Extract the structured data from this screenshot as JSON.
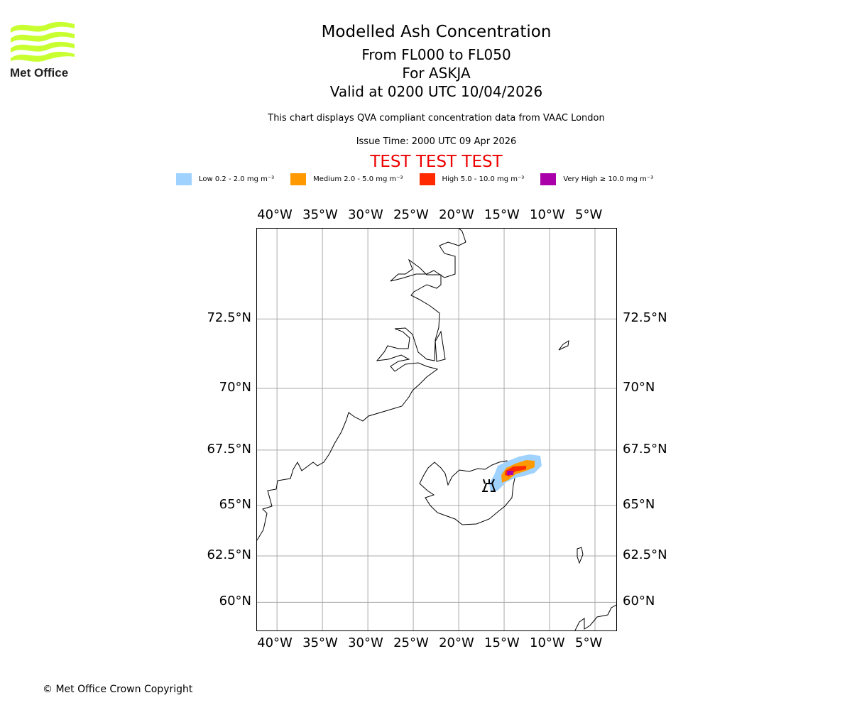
{
  "logo": {
    "text": "Met Office",
    "color": "#c8ff30"
  },
  "header": {
    "title": "Modelled Ash Concentration",
    "levels": "From FL000 to FL050",
    "volcano": "For ASKJA",
    "valid": "Valid at 0200 UTC 10/04/2026",
    "description": "This chart displays QVA compliant concentration data from VAAC London",
    "issue_time": "Issue Time: 2000 UTC 09 Apr 2026",
    "test_banner": "TEST TEST TEST",
    "test_color": "#ee0000"
  },
  "legend": [
    {
      "label": "Low 0.2 - 2.0 mg m⁻³",
      "color": "#a0d2ff"
    },
    {
      "label": "Medium 2.0 - 5.0 mg m⁻³",
      "color": "#ff9900"
    },
    {
      "label": "High 5.0 - 10.0 mg m⁻³",
      "color": "#ff2a00"
    },
    {
      "label": "Very High ≥ 10.0 mg m⁻³",
      "color": "#aa00aa"
    }
  ],
  "map": {
    "projection": "mercator",
    "lon_range": [
      -42.2,
      -2.5
    ],
    "lat_range": [
      58.3,
      75.3
    ],
    "lon_ticks": [
      {
        "value": -40,
        "label": "40°W"
      },
      {
        "value": -35,
        "label": "35°W"
      },
      {
        "value": -30,
        "label": "30°W"
      },
      {
        "value": -25,
        "label": "25°W"
      },
      {
        "value": -20,
        "label": "20°W"
      },
      {
        "value": -15,
        "label": "15°W"
      },
      {
        "value": -10,
        "label": "10°W"
      },
      {
        "value": -5,
        "label": "5°W"
      }
    ],
    "lat_ticks": [
      {
        "value": 72.5,
        "label": "72.5°N"
      },
      {
        "value": 70,
        "label": "70°N"
      },
      {
        "value": 67.5,
        "label": "67.5°N"
      },
      {
        "value": 65,
        "label": "65°N"
      },
      {
        "value": 62.5,
        "label": "62.5°N"
      },
      {
        "value": 60,
        "label": "60°N"
      }
    ],
    "volcano_icon": "volcano-icon"
  },
  "footer": {
    "copyright": "© Met Office Crown Copyright"
  }
}
